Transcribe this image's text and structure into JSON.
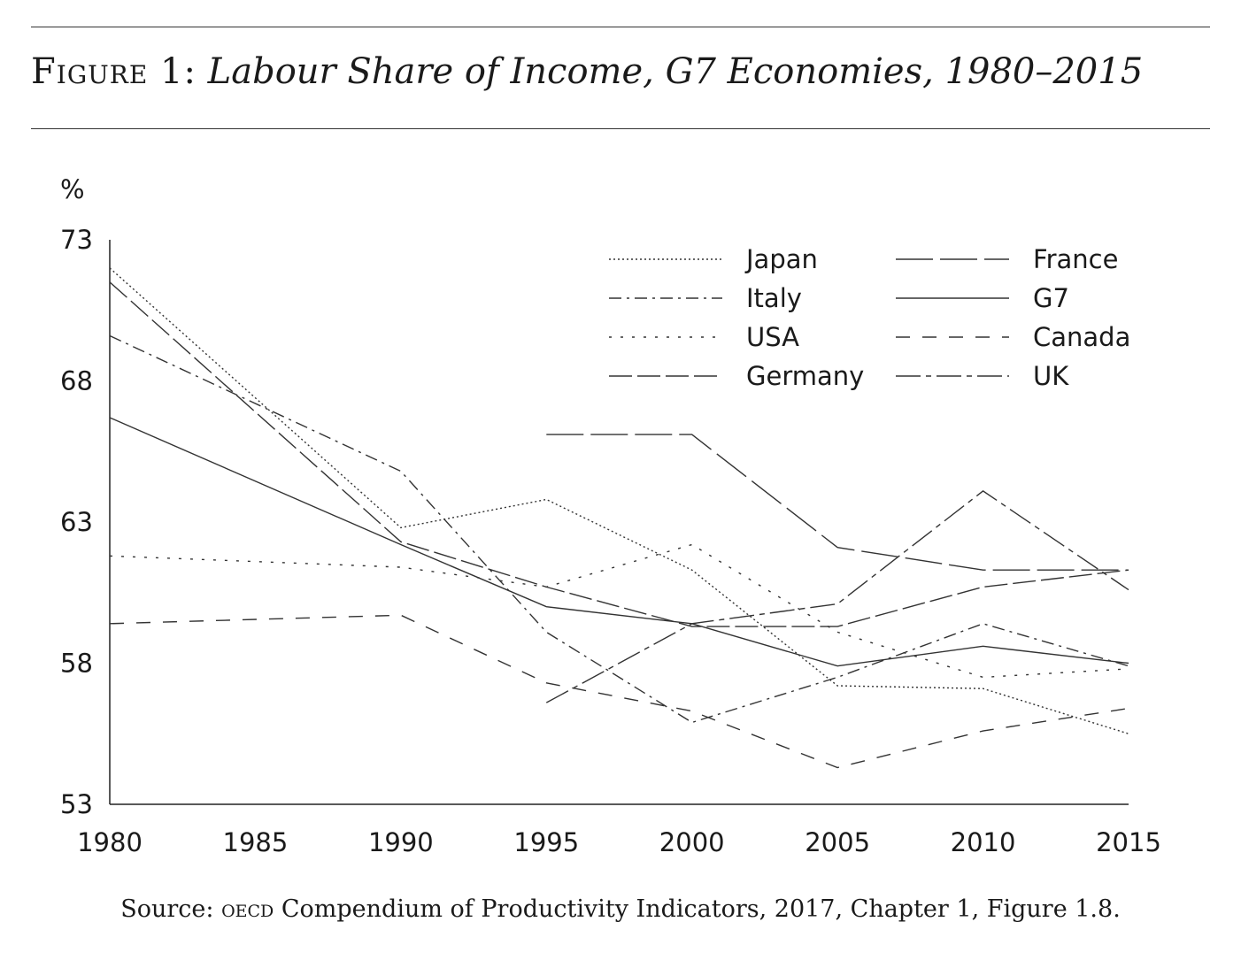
{
  "figure": {
    "label": "Figure 1:",
    "title": "Labour Share of Income, G7 Economies, 1980–2015"
  },
  "source": {
    "prefix": "Source:",
    "org": "oecd",
    "text": "Compendium of Productivity Indicators, 2017, Chapter 1, Figure 1.8."
  },
  "chart_data": {
    "type": "line",
    "title": "",
    "xlabel": "",
    "ylabel": "%",
    "x": [
      1980,
      1985,
      1990,
      1995,
      2000,
      2005,
      2010,
      2015
    ],
    "xlim": [
      1980,
      2015
    ],
    "ylim": [
      53,
      73
    ],
    "yticks": [
      53,
      58,
      63,
      68,
      73
    ],
    "grid": false,
    "legend_position": "top-right",
    "series": [
      {
        "name": "Japan",
        "dash": "2,3",
        "values": [
          72.0,
          null,
          62.8,
          63.8,
          61.3,
          57.2,
          57.1,
          55.5
        ]
      },
      {
        "name": "Italy",
        "dash": "14,6,3,6",
        "values": [
          69.6,
          null,
          64.8,
          59.1,
          55.9,
          57.5,
          59.4,
          57.9
        ]
      },
      {
        "name": "USA",
        "dash": "3,10",
        "values": [
          61.8,
          null,
          61.4,
          60.7,
          62.2,
          59.1,
          57.5,
          57.8
        ]
      },
      {
        "name": "Germany",
        "dash": "26,6",
        "values": [
          71.5,
          null,
          62.3,
          60.7,
          59.3,
          59.3,
          60.7,
          61.3
        ]
      },
      {
        "name": "France",
        "dash": "42,8",
        "values": [
          null,
          null,
          null,
          66.1,
          66.1,
          62.1,
          61.3,
          61.3
        ]
      },
      {
        "name": "G7",
        "dash": "",
        "values": [
          66.7,
          null,
          62.2,
          60.0,
          59.4,
          57.9,
          58.6,
          58.0
        ]
      },
      {
        "name": "Canada",
        "dash": "16,14",
        "values": [
          59.4,
          null,
          59.7,
          57.3,
          56.3,
          54.3,
          55.6,
          56.4
        ]
      },
      {
        "name": "UK",
        "dash": "28,6,6,6",
        "values": [
          null,
          null,
          null,
          56.6,
          59.4,
          60.1,
          64.1,
          60.6
        ]
      }
    ]
  }
}
